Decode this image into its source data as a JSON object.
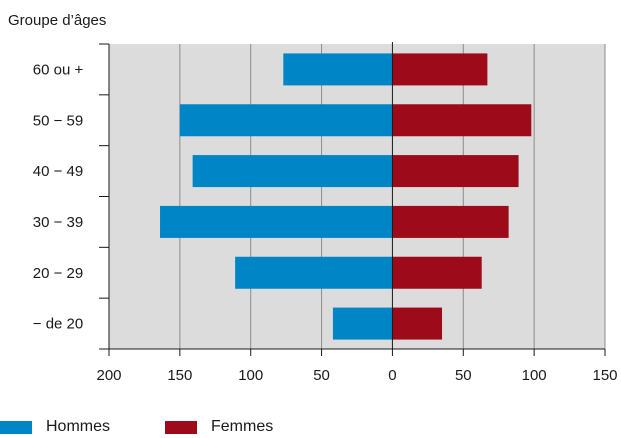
{
  "chart_data": {
    "type": "bar",
    "orientation": "horizontal-population-pyramid",
    "title": "Groupe d’âges",
    "categories": [
      "60 ou +",
      "50 − 59",
      "40 − 49",
      "30 − 39",
      "20 − 29",
      "− de 20"
    ],
    "series": [
      {
        "name": "Hommes",
        "side": "left",
        "color": "#0086c6",
        "values": [
          77,
          150,
          141,
          164,
          111,
          42
        ]
      },
      {
        "name": "Femmes",
        "side": "right",
        "color": "#9d0a1a",
        "values": [
          67,
          98,
          89,
          82,
          63,
          35
        ]
      }
    ],
    "xticks": [
      "200",
      "150",
      "100",
      "50",
      "0",
      "50",
      "100",
      "150"
    ],
    "xlim": [
      -200,
      150
    ],
    "grid": true,
    "background_color": "#dcdcdc",
    "legend_position": "bottom-left"
  }
}
